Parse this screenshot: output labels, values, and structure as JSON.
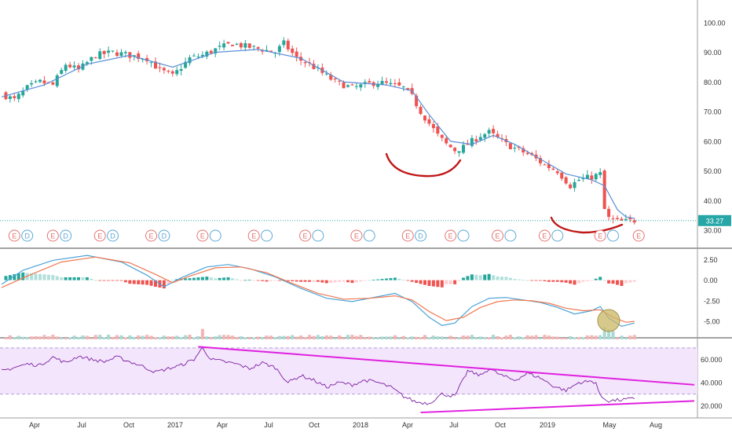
{
  "colors": {
    "up": "#26a69a",
    "down": "#ef5350",
    "ma": "#5b8fd6",
    "macd": "#4aa3d8",
    "signal": "#f07850",
    "hist_up_strong": "#26a69a",
    "hist_up_weak": "#b2dfdb",
    "hist_down_strong": "#ef5350",
    "hist_down_weak": "#ffcdd2",
    "rsi_line": "#7b1fa2",
    "rsi_band": "#f3e5fb",
    "trendline": "#e020e0",
    "annotation_curve": "#c01818",
    "highlight_circle": "#c9b765",
    "price_line": "#26a6a6",
    "axis_text": "#333333",
    "separator": "#444444"
  },
  "price_label": "33.27",
  "chart_data": [
    {
      "type": "candlestick",
      "panel": "price",
      "x_ticks": [
        "Apr",
        "Jul",
        "Oct",
        "2017",
        "Apr",
        "Jul",
        "Oct",
        "2018",
        "Apr",
        "Jul",
        "Oct",
        "2019",
        "May",
        "Aug"
      ],
      "ylim": [
        25,
        105
      ],
      "y_ticks": [
        "100.00",
        "90.00",
        "80.00",
        "70.00",
        "60.00",
        "50.00",
        "40.00",
        "30.00"
      ],
      "close_path": [
        [
          0,
          76
        ],
        [
          3,
          74
        ],
        [
          6,
          78
        ],
        [
          9,
          80
        ],
        [
          12,
          79
        ],
        [
          15,
          86
        ],
        [
          18,
          84
        ],
        [
          22,
          89
        ],
        [
          26,
          90
        ],
        [
          30,
          89
        ],
        [
          34,
          88
        ],
        [
          37,
          84
        ],
        [
          40,
          82
        ],
        [
          44,
          88
        ],
        [
          47,
          89
        ],
        [
          50,
          91
        ],
        [
          54,
          93
        ],
        [
          57,
          92
        ],
        [
          61,
          91
        ],
        [
          64,
          90
        ],
        [
          66,
          93
        ],
        [
          69,
          88
        ],
        [
          72,
          86
        ],
        [
          75,
          83
        ],
        [
          78,
          80
        ],
        [
          82,
          78
        ],
        [
          85,
          79
        ],
        [
          88,
          80
        ],
        [
          91,
          79
        ],
        [
          94,
          78
        ],
        [
          96,
          75
        ],
        [
          98,
          70
        ],
        [
          100,
          66
        ],
        [
          102,
          62
        ],
        [
          104,
          59
        ],
        [
          106,
          57
        ],
        [
          108,
          58
        ],
        [
          110,
          60
        ],
        [
          112,
          62
        ],
        [
          114,
          63
        ],
        [
          116,
          61
        ],
        [
          118,
          59
        ],
        [
          121,
          57
        ],
        [
          124,
          55
        ],
        [
          127,
          52
        ],
        [
          130,
          50
        ],
        [
          133,
          45
        ],
        [
          135,
          47
        ],
        [
          138,
          48
        ],
        [
          140,
          49
        ],
        [
          141,
          37
        ],
        [
          142,
          34
        ],
        [
          144,
          33
        ],
        [
          146,
          33
        ],
        [
          148,
          33.3
        ]
      ],
      "ma_points": [
        [
          0,
          75
        ],
        [
          10,
          79
        ],
        [
          20,
          86
        ],
        [
          30,
          89
        ],
        [
          40,
          85
        ],
        [
          50,
          90
        ],
        [
          60,
          91
        ],
        [
          70,
          88
        ],
        [
          80,
          80
        ],
        [
          90,
          79
        ],
        [
          96,
          77
        ],
        [
          100,
          69
        ],
        [
          105,
          60
        ],
        [
          110,
          59
        ],
        [
          115,
          62
        ],
        [
          120,
          59
        ],
        [
          126,
          54
        ],
        [
          132,
          49
        ],
        [
          138,
          47
        ],
        [
          141,
          45
        ],
        [
          144,
          37
        ],
        [
          146,
          34.5
        ],
        [
          148,
          34
        ]
      ],
      "current_price": 33.27,
      "event_markers": {
        "text": [
          "E",
          "D",
          "E",
          "D",
          "E",
          "D",
          "E",
          "D",
          "E",
          "",
          "E",
          "",
          "E",
          "",
          "E",
          "",
          "E",
          "D",
          "E",
          "",
          "E",
          "",
          "E",
          "",
          "E",
          "",
          "E"
        ],
        "x": [
          3,
          6,
          12,
          15,
          23,
          26,
          35,
          38,
          47,
          50,
          59,
          62,
          71,
          74,
          83,
          86,
          95,
          98,
          105,
          108,
          116,
          119,
          127,
          130,
          140,
          143,
          149
        ]
      }
    },
    {
      "type": "macd",
      "panel": "macd",
      "ylim": [
        -6.8,
        3.3
      ],
      "y_ticks": [
        "2.50",
        "0.00",
        "-2.50",
        "-5.00"
      ],
      "macd": [
        [
          0,
          -0.5
        ],
        [
          5,
          1.2
        ],
        [
          12,
          2.4
        ],
        [
          20,
          3.0
        ],
        [
          28,
          2.2
        ],
        [
          34,
          0.6
        ],
        [
          38,
          -0.8
        ],
        [
          42,
          0.3
        ],
        [
          48,
          1.6
        ],
        [
          53,
          1.9
        ],
        [
          58,
          1.4
        ],
        [
          64,
          0.4
        ],
        [
          70,
          -1.0
        ],
        [
          76,
          -2.2
        ],
        [
          82,
          -2.6
        ],
        [
          88,
          -2.0
        ],
        [
          92,
          -1.6
        ],
        [
          96,
          -2.6
        ],
        [
          100,
          -4.5
        ],
        [
          103,
          -5.5
        ],
        [
          106,
          -5.2
        ],
        [
          110,
          -3.2
        ],
        [
          114,
          -2.2
        ],
        [
          118,
          -2.1
        ],
        [
          122,
          -2.4
        ],
        [
          126,
          -2.7
        ],
        [
          130,
          -3.3
        ],
        [
          134,
          -4.1
        ],
        [
          138,
          -3.7
        ],
        [
          140,
          -3.2
        ],
        [
          142,
          -4.6
        ],
        [
          145,
          -5.6
        ],
        [
          148,
          -5.2
        ]
      ],
      "signal": [
        [
          0,
          -0.9
        ],
        [
          6,
          0.5
        ],
        [
          14,
          2.2
        ],
        [
          22,
          2.8
        ],
        [
          30,
          2.1
        ],
        [
          36,
          0.7
        ],
        [
          40,
          -0.3
        ],
        [
          44,
          0.5
        ],
        [
          50,
          1.5
        ],
        [
          56,
          1.6
        ],
        [
          62,
          0.9
        ],
        [
          68,
          -0.4
        ],
        [
          74,
          -1.6
        ],
        [
          80,
          -2.3
        ],
        [
          86,
          -2.2
        ],
        [
          92,
          -1.9
        ],
        [
          96,
          -2.4
        ],
        [
          100,
          -3.8
        ],
        [
          104,
          -4.9
        ],
        [
          108,
          -4.5
        ],
        [
          112,
          -3.3
        ],
        [
          116,
          -2.6
        ],
        [
          120,
          -2.4
        ],
        [
          124,
          -2.5
        ],
        [
          128,
          -2.8
        ],
        [
          132,
          -3.4
        ],
        [
          136,
          -3.7
        ],
        [
          140,
          -3.6
        ],
        [
          143,
          -4.5
        ],
        [
          146,
          -5.1
        ],
        [
          148,
          -5.0
        ]
      ],
      "histogram_range": [
        1,
        148
      ]
    },
    {
      "type": "line",
      "panel": "rsi",
      "ylim": [
        12,
        76
      ],
      "y_ticks": [
        "60.000",
        "40.000",
        "20.000"
      ],
      "band": [
        30,
        70
      ],
      "values": [
        [
          0,
          50
        ],
        [
          3,
          53
        ],
        [
          6,
          56
        ],
        [
          9,
          55
        ],
        [
          12,
          62
        ],
        [
          15,
          57
        ],
        [
          18,
          63
        ],
        [
          21,
          60
        ],
        [
          24,
          58
        ],
        [
          27,
          62
        ],
        [
          30,
          58
        ],
        [
          33,
          54
        ],
        [
          36,
          49
        ],
        [
          39,
          52
        ],
        [
          42,
          55
        ],
        [
          45,
          60
        ],
        [
          47,
          70
        ],
        [
          49,
          60
        ],
        [
          52,
          58
        ],
        [
          55,
          56
        ],
        [
          58,
          52
        ],
        [
          61,
          57
        ],
        [
          64,
          53
        ],
        [
          67,
          40
        ],
        [
          70,
          46
        ],
        [
          73,
          42
        ],
        [
          76,
          36
        ],
        [
          79,
          40
        ],
        [
          82,
          38
        ],
        [
          85,
          42
        ],
        [
          88,
          40
        ],
        [
          91,
          36
        ],
        [
          94,
          28
        ],
        [
          97,
          23
        ],
        [
          100,
          22
        ],
        [
          103,
          30
        ],
        [
          106,
          28
        ],
        [
          109,
          50
        ],
        [
          112,
          46
        ],
        [
          114,
          52
        ],
        [
          117,
          46
        ],
        [
          120,
          42
        ],
        [
          123,
          48
        ],
        [
          126,
          44
        ],
        [
          129,
          37
        ],
        [
          132,
          33
        ],
        [
          135,
          40
        ],
        [
          138,
          41
        ],
        [
          139,
          40
        ],
        [
          140,
          28
        ],
        [
          142,
          24
        ],
        [
          145,
          25
        ],
        [
          148,
          26
        ]
      ],
      "trendlines": [
        {
          "from": [
            46,
            71
          ],
          "to": [
            162,
            38
          ]
        },
        {
          "from": [
            98,
            14
          ],
          "to": [
            162,
            24
          ]
        }
      ]
    }
  ]
}
